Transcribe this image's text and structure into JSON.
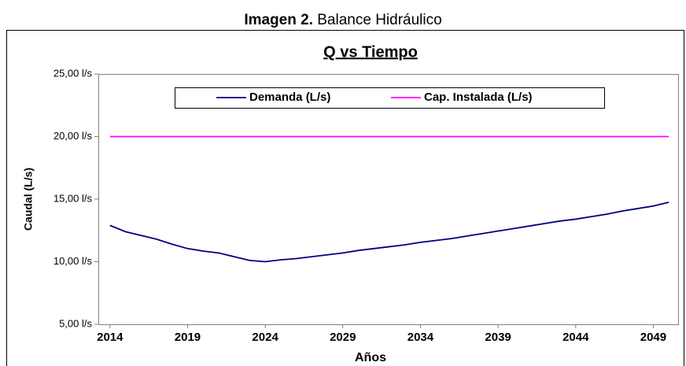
{
  "caption": {
    "label": "Imagen 2.",
    "text": "Balance Hidráulico"
  },
  "chart_data": {
    "type": "line",
    "title": "Q vs Tiempo",
    "xlabel": "Años",
    "ylabel": "Caudal (L/s)",
    "x": [
      2014,
      2015,
      2016,
      2017,
      2018,
      2019,
      2020,
      2021,
      2022,
      2023,
      2024,
      2025,
      2026,
      2027,
      2028,
      2029,
      2030,
      2031,
      2032,
      2033,
      2034,
      2035,
      2036,
      2037,
      2038,
      2039,
      2040,
      2041,
      2042,
      2043,
      2044,
      2045,
      2046,
      2047,
      2048,
      2049,
      2050
    ],
    "series": [
      {
        "name": "Demanda (L/s)",
        "color": "#000080",
        "values": [
          12.9,
          12.4,
          12.1,
          11.8,
          11.4,
          11.05,
          10.85,
          10.7,
          10.4,
          10.1,
          10.0,
          10.15,
          10.25,
          10.4,
          10.55,
          10.7,
          10.9,
          11.05,
          11.2,
          11.35,
          11.55,
          11.7,
          11.85,
          12.05,
          12.25,
          12.45,
          12.65,
          12.85,
          13.05,
          13.25,
          13.4,
          13.6,
          13.8,
          14.05,
          14.25,
          14.45,
          14.75
        ]
      },
      {
        "name": "Cap. Instalada (L/s)",
        "color": "#ff00ff",
        "values": [
          20,
          20,
          20,
          20,
          20,
          20,
          20,
          20,
          20,
          20,
          20,
          20,
          20,
          20,
          20,
          20,
          20,
          20,
          20,
          20,
          20,
          20,
          20,
          20,
          20,
          20,
          20,
          20,
          20,
          20,
          20,
          20,
          20,
          20,
          20,
          20,
          20
        ]
      }
    ],
    "xlim": [
      2013.25,
      2050.6
    ],
    "xticks": [
      2014,
      2019,
      2024,
      2029,
      2034,
      2039,
      2044,
      2049
    ],
    "ylim": [
      5,
      25
    ],
    "yticks": [
      {
        "value": 5,
        "label": "5,00 l/s"
      },
      {
        "value": 10,
        "label": "10,00 l/s"
      },
      {
        "value": 15,
        "label": "15,00 l/s"
      },
      {
        "value": 20,
        "label": "20,00 l/s"
      },
      {
        "value": 25,
        "label": "25,00 l/s"
      }
    ],
    "legend": "top"
  }
}
